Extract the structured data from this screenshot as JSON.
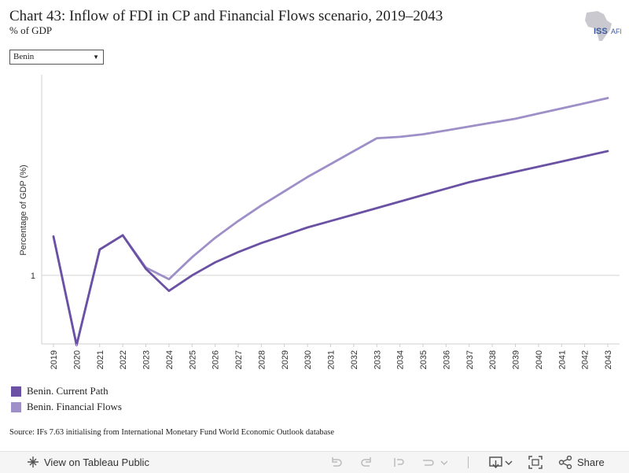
{
  "header": {
    "title": "Chart 43: Inflow of FDI in CP and Financial Flows scenario, 2019–2043",
    "subtitle": "% of GDP",
    "logo_text": "ISS|AFI"
  },
  "filter": {
    "selected": "Benin"
  },
  "chart_data": {
    "type": "line",
    "title": "Chart 43: Inflow of FDI in CP and Financial Flows scenario, 2019–2043",
    "subtitle": "% of GDP",
    "xlabel": "",
    "ylabel": "Percentage of GDP (%)",
    "x": [
      "2019",
      "2020",
      "2021",
      "2022",
      "2023",
      "2024",
      "2025",
      "2026",
      "2027",
      "2028",
      "2029",
      "2030",
      "2031",
      "2032",
      "2033",
      "2034",
      "2035",
      "2036",
      "2037",
      "2038",
      "2039",
      "2040",
      "2041",
      "2042",
      "2043"
    ],
    "y_ticks": [
      1
    ],
    "y_tick_labels": [
      "1"
    ],
    "ylim": [
      0.47,
      2.55
    ],
    "grid": false,
    "legend_position": "bottom-left",
    "series": [
      {
        "name": "Benin. Current Path",
        "color": "#6a51a3",
        "values": [
          1.3,
          0.46,
          1.2,
          1.31,
          1.05,
          0.88,
          1.0,
          1.1,
          1.18,
          1.25,
          1.31,
          1.37,
          1.42,
          1.47,
          1.52,
          1.57,
          1.62,
          1.67,
          1.72,
          1.76,
          1.8,
          1.84,
          1.88,
          1.92,
          1.96
        ]
      },
      {
        "name": "Benin. Financial Flows",
        "color": "#9e8fc8",
        "values": [
          1.3,
          0.46,
          1.2,
          1.31,
          1.06,
          0.97,
          1.14,
          1.29,
          1.42,
          1.54,
          1.65,
          1.76,
          1.86,
          1.96,
          2.06,
          2.07,
          2.09,
          2.12,
          2.15,
          2.18,
          2.21,
          2.25,
          2.29,
          2.33,
          2.37
        ]
      }
    ]
  },
  "source": "Source: IFs 7.63 initialising from International Monetary Fund World Economic Outlook database",
  "footer": {
    "view_label": "View on Tableau Public",
    "share_label": "Share"
  }
}
